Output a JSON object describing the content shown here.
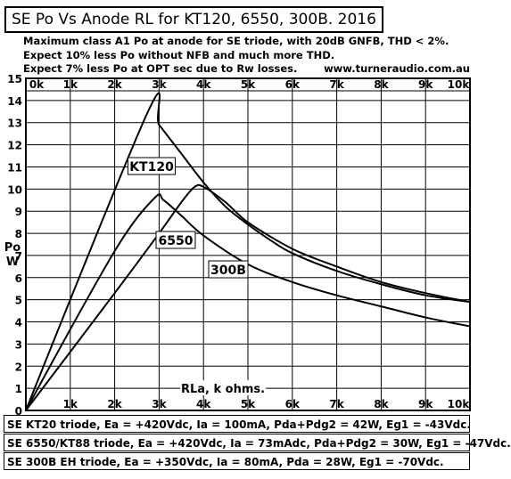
{
  "header": {
    "title": "SE Po Vs  Anode RL  for  KT120, 6550, 300B. 2016",
    "notes": [
      "Maximum class A1 Po at anode for SE triode, with 20dB GNFB, THD < 2%.",
      "Expect 10% less Po without NFB and much more THD.",
      "Expect 7% less Po at OPT sec due to Rw losses."
    ],
    "url": "www.turneraudio.com.au"
  },
  "chart_data": {
    "type": "line",
    "title": "SE Po Vs  Anode RL  for  KT120, 6550, 300B. 2016",
    "xlabel": "RLa, k ohms.",
    "ylabel": "Po W",
    "xlim": [
      0,
      10
    ],
    "ylim": [
      0,
      15
    ],
    "x_ticks": [
      "0k",
      "1k",
      "2k",
      "3k",
      "4k",
      "5k",
      "6k",
      "7k",
      "8k",
      "9k",
      "10k"
    ],
    "y_ticks": [
      "0",
      "1",
      "2",
      "3",
      "4",
      "5",
      "6",
      "7",
      "8",
      "9",
      "10",
      "11",
      "12",
      "13",
      "14",
      "15"
    ],
    "grid": true,
    "series": [
      {
        "name": "KT120",
        "x": [
          0,
          2.75,
          3.0,
          3.5,
          4.0,
          4.5,
          5.0,
          5.5,
          6.0,
          7.0,
          8.0,
          9.0,
          10.0
        ],
        "y": [
          0,
          13.5,
          12.9,
          11.6,
          10.3,
          9.2,
          8.4,
          7.7,
          7.1,
          6.3,
          5.7,
          5.2,
          4.9
        ]
      },
      {
        "name": "6550",
        "x": [
          0,
          2.0,
          3.0,
          3.5,
          3.8,
          4.0,
          4.5,
          5.0,
          6.0,
          7.0,
          8.0,
          9.0,
          10.0
        ],
        "y": [
          0,
          5.3,
          8.0,
          9.4,
          10.1,
          10.1,
          9.4,
          8.5,
          7.3,
          6.5,
          5.8,
          5.3,
          4.9
        ]
      },
      {
        "name": "300B",
        "x": [
          0,
          2.0,
          2.9,
          3.1,
          3.5,
          4.0,
          5.0,
          6.0,
          7.0,
          8.0,
          9.0,
          10.0
        ],
        "y": [
          0,
          7.2,
          9.6,
          9.5,
          8.8,
          7.9,
          6.6,
          5.8,
          5.2,
          4.7,
          4.2,
          3.8
        ]
      }
    ],
    "annotations": [
      "KT120",
      "6550",
      "300B"
    ]
  },
  "specs": [
    "SE KT20 triode, Ea = +420Vdc, Ia = 100mA, Pda+Pdg2 = 42W, Eg1 = -43Vdc.",
    "SE 6550/KT88 triode, Ea = +420Vdc, Ia = 73mAdc, Pda+Pdg2 = 30W, Eg1 = -47Vdc.",
    "SE 300B EH triode, Ea = +350Vdc, Ia = 80mA, Pda = 28W, Eg1 =  -70Vdc."
  ]
}
